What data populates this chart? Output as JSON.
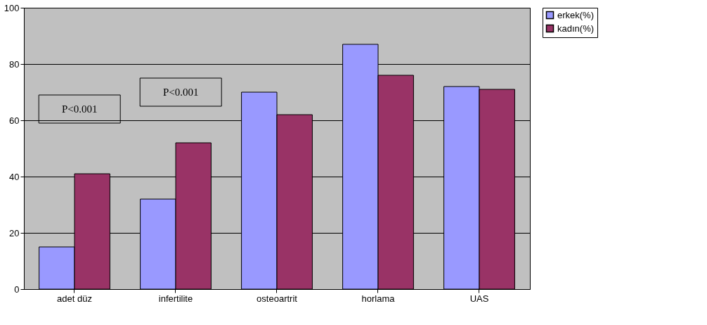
{
  "chart_data": {
    "type": "bar",
    "categories": [
      "adet düz",
      "infertilite",
      "osteoartrit",
      "horlama",
      "UAS"
    ],
    "series": [
      {
        "name": "erkek(%)",
        "color": "#9999ff",
        "values": [
          15,
          32,
          70,
          87,
          72
        ]
      },
      {
        "name": "kadın(%)",
        "color": "#993366",
        "values": [
          41,
          52,
          62,
          76,
          71
        ]
      }
    ],
    "ylim": [
      0,
      100
    ],
    "yticks": [
      0,
      20,
      40,
      60,
      80,
      100
    ],
    "grid": "y",
    "legend": "right",
    "annotations": [
      "P<0.001",
      "P<0.001"
    ]
  }
}
